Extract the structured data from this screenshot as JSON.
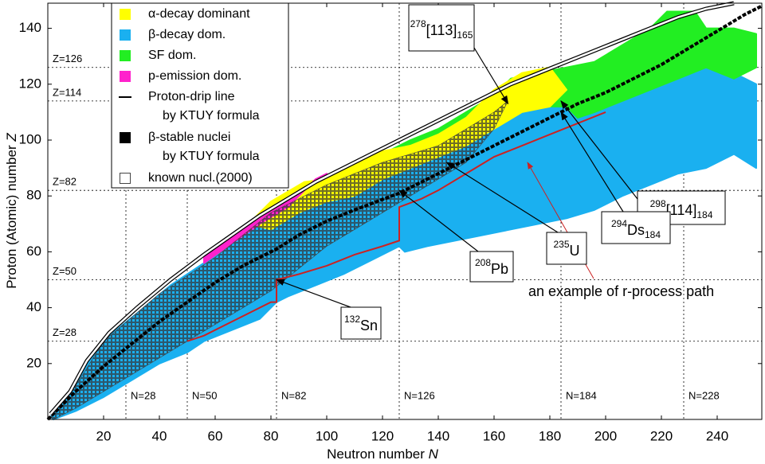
{
  "chart_data": {
    "type": "nuclide-chart",
    "xlabel": [
      "Neutron number ",
      "N"
    ],
    "ylabel": [
      "Proton (Atomic) number ",
      "Z"
    ],
    "xlim": [
      0,
      256
    ],
    "ylim": [
      0,
      149
    ],
    "xticks": [
      20,
      40,
      60,
      80,
      100,
      120,
      140,
      160,
      180,
      200,
      220,
      240
    ],
    "yticks": [
      20,
      40,
      60,
      80,
      100,
      120,
      140
    ],
    "magic_z": [
      {
        "value": 28,
        "label": "Z=28"
      },
      {
        "value": 50,
        "label": "Z=50"
      },
      {
        "value": 82,
        "label": "Z=82"
      },
      {
        "value": 114,
        "label": "Z=114"
      },
      {
        "value": 126,
        "label": "Z=126"
      }
    ],
    "magic_n": [
      {
        "value": 28,
        "label": "N=28"
      },
      {
        "value": 50,
        "label": "N=50"
      },
      {
        "value": 82,
        "label": "N=82"
      },
      {
        "value": 126,
        "label": "N=126"
      },
      {
        "value": 184,
        "label": "N=184"
      },
      {
        "value": 228,
        "label": "N=228"
      }
    ],
    "series": [
      {
        "name": "α-decay dominant",
        "kind": "region",
        "color": "#ffff00",
        "x": [
          72,
          80,
          92,
          100,
          110,
          120,
          130,
          140,
          150,
          160,
          170,
          180,
          186,
          180,
          170,
          160,
          150,
          140,
          130,
          120,
          110,
          100,
          90,
          80
        ],
        "y": [
          70,
          78,
          85,
          86,
          92,
          96,
          98,
          102,
          108,
          118,
          124,
          126,
          118,
          112,
          110,
          104,
          98,
          94,
          90,
          86,
          80,
          78,
          74,
          68
        ]
      },
      {
        "name": "β-decay dom.",
        "kind": "region",
        "color": "#1ab0f0",
        "x": [
          1,
          8,
          14,
          22,
          32,
          44,
          56,
          66,
          76,
          86,
          96,
          106,
          116,
          126,
          136,
          146,
          156,
          166,
          176,
          186,
          196,
          206,
          216,
          226,
          236,
          246,
          254,
          254,
          246,
          236,
          226,
          216,
          206,
          196,
          186,
          176,
          166,
          156,
          146,
          136,
          128,
          126,
          116,
          106,
          96,
          86,
          82,
          76,
          66,
          56,
          50,
          40,
          30,
          20,
          10,
          2
        ],
        "y": [
          1,
          9,
          20,
          30,
          38,
          48,
          56,
          63,
          70,
          76,
          82,
          86,
          90,
          95,
          100,
          104,
          110,
          114,
          118,
          122,
          126,
          130,
          134,
          128,
          130,
          124,
          120,
          90,
          95,
          90,
          88,
          84,
          80,
          75,
          72,
          70,
          68,
          66,
          64,
          62,
          60,
          62,
          57,
          52,
          48,
          44,
          42,
          36,
          32,
          28,
          24,
          20,
          14,
          8,
          3,
          0
        ]
      },
      {
        "name": "SF dom.",
        "kind": "region",
        "color": "#22ee22",
        "x": [
          120,
          130,
          140,
          150,
          160,
          166,
          176,
          186,
          196,
          206,
          216,
          222,
          232,
          236,
          246,
          254,
          254,
          246,
          236,
          226,
          216,
          206,
          196,
          190,
          186,
          176,
          166,
          156,
          146,
          136,
          126
        ],
        "y": [
          95,
          100,
          104,
          110,
          116,
          122,
          124,
          126,
          128,
          134,
          140,
          146,
          146,
          140,
          140,
          138,
          126,
          122,
          126,
          122,
          118,
          114,
          110,
          108,
          112,
          112,
          110,
          106,
          100,
          96,
          90
        ]
      },
      {
        "name": "p-emission dom.",
        "kind": "region",
        "color": "#ff22cc",
        "x": [
          56,
          66,
          76,
          86,
          96,
          100,
          96,
          86,
          76,
          66,
          56
        ],
        "y": [
          59,
          66,
          73,
          79,
          85,
          88,
          86,
          76,
          70,
          63,
          56
        ]
      },
      {
        "name": "Proton-drip line",
        "name_line2": "by KTUY formula",
        "kind": "drip-line",
        "color": "#000000",
        "x": [
          1,
          8,
          14,
          22,
          32,
          44,
          56,
          66,
          76,
          86,
          96,
          106,
          116,
          126,
          136,
          146,
          156,
          166,
          176,
          186,
          196,
          206,
          216,
          226,
          236,
          246
        ],
        "y": [
          2,
          10,
          21,
          31,
          40,
          50,
          59,
          66,
          73,
          79,
          85,
          90,
          95,
          100,
          105,
          110,
          115,
          120,
          124,
          128,
          132,
          136,
          140,
          144,
          147,
          149
        ]
      },
      {
        "name": "β-stable nuclei",
        "name_line2": "by KTUY formula",
        "kind": "stable-line",
        "color": "#000000",
        "x": [
          0,
          10,
          20,
          30,
          40,
          50,
          60,
          70,
          82,
          90,
          100,
          110,
          126,
          140,
          150,
          160,
          170,
          180,
          190,
          200,
          210,
          220,
          230,
          240,
          250,
          256
        ],
        "y": [
          0,
          10,
          19,
          27,
          35,
          42,
          49,
          55,
          61,
          66,
          71,
          75,
          81,
          88,
          93,
          98,
          103,
          108,
          113,
          117,
          122,
          127,
          133,
          139,
          145,
          148
        ]
      },
      {
        "name": "known nucl.(2000)",
        "kind": "known",
        "color": "#444444",
        "x": [
          1,
          10,
          20,
          40,
          60,
          80,
          100,
          120,
          140,
          150,
          160,
          165,
          160,
          150,
          140,
          130,
          120,
          110,
          100,
          90,
          80,
          70,
          60,
          50,
          40,
          30,
          20,
          10,
          2
        ],
        "y": [
          1,
          12,
          28,
          45,
          58,
          74,
          84,
          92,
          98,
          104,
          110,
          114,
          104,
          92,
          86,
          80,
          74,
          68,
          62,
          54,
          46,
          40,
          34,
          28,
          22,
          16,
          10,
          4,
          0
        ]
      }
    ],
    "r_process": {
      "label": "an example of r-process path",
      "color": "#cc2222",
      "x": [
        50,
        56,
        64,
        72,
        80,
        82,
        82,
        90,
        100,
        110,
        120,
        126,
        126,
        134,
        140,
        150,
        160,
        170,
        180,
        190,
        200
      ],
      "y": [
        28,
        30,
        34,
        38,
        42,
        42,
        50,
        52,
        55,
        59,
        62,
        64,
        76,
        79,
        82,
        88,
        94,
        98,
        102,
        106,
        110
      ],
      "arrow_N": 172,
      "arrow_Z": 92
    },
    "annotations": [
      {
        "sup": "278",
        "text": "[113]",
        "sub": "165",
        "N": 165,
        "Z": 113
      },
      {
        "sup": "298",
        "text": "[114]",
        "sub": "184",
        "N": 184,
        "Z": 114
      },
      {
        "sup": "294",
        "text": "Ds",
        "sub": "184",
        "N": 184,
        "Z": 110
      },
      {
        "sup": "235",
        "text": "U",
        "N": 143,
        "Z": 92
      },
      {
        "sup": "208",
        "text": "Pb",
        "N": 126,
        "Z": 82
      },
      {
        "sup": "132",
        "text": "Sn",
        "N": 82,
        "Z": 50
      }
    ]
  }
}
